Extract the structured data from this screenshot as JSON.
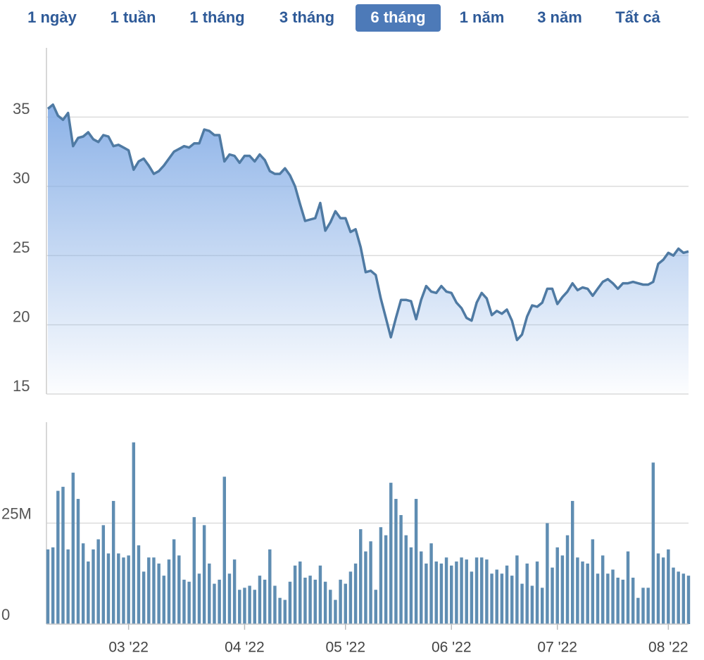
{
  "range_buttons": [
    "1 ngày",
    "1 tuần",
    "1 tháng",
    "3 tháng",
    "6 tháng",
    "1 năm",
    "3 năm",
    "Tất cả"
  ],
  "selected_index": 4,
  "chart_data": [
    {
      "type": "area",
      "x": [
        0,
        1,
        2,
        3,
        4,
        5,
        6,
        7,
        8,
        9,
        10,
        11,
        12,
        13,
        14,
        15,
        16,
        17,
        18,
        19,
        20,
        21,
        22,
        23,
        24,
        25,
        26,
        27,
        28,
        29,
        30,
        31,
        32,
        33,
        34,
        35,
        36,
        37,
        38,
        39,
        40,
        41,
        42,
        43,
        44,
        45,
        46,
        47,
        48,
        49,
        50,
        51,
        52,
        53,
        54,
        55,
        56,
        57,
        58,
        59,
        60,
        61,
        62,
        63,
        64,
        65,
        66,
        67,
        68,
        69,
        70,
        71,
        72,
        73,
        74,
        75,
        76,
        77,
        78,
        79,
        80,
        81,
        82,
        83,
        84,
        85,
        86,
        87,
        88,
        89,
        90,
        91,
        92,
        93,
        94,
        95,
        96,
        97,
        98,
        99,
        100,
        101,
        102,
        103,
        104,
        105,
        106,
        107,
        108,
        109,
        110,
        111,
        112,
        113,
        114,
        115,
        116,
        117,
        118,
        119,
        120,
        121,
        122,
        123,
        124,
        125,
        126,
        127
      ],
      "values": [
        35.6,
        35.9,
        35.1,
        34.8,
        35.3,
        32.9,
        33.5,
        33.6,
        33.9,
        33.4,
        33.2,
        33.7,
        33.6,
        32.9,
        33.0,
        32.8,
        32.6,
        31.2,
        31.8,
        32.0,
        31.5,
        30.9,
        31.1,
        31.5,
        32.0,
        32.5,
        32.7,
        32.9,
        32.8,
        33.1,
        33.1,
        34.1,
        34.0,
        33.7,
        33.7,
        31.8,
        32.3,
        32.2,
        31.7,
        32.2,
        32.2,
        31.8,
        32.3,
        31.9,
        31.1,
        30.9,
        30.9,
        31.3,
        30.8,
        30.0,
        28.7,
        27.5,
        27.6,
        27.7,
        28.8,
        26.8,
        27.4,
        28.2,
        27.7,
        27.7,
        26.7,
        26.9,
        25.6,
        23.8,
        23.9,
        23.6,
        21.9,
        20.5,
        19.1,
        20.5,
        21.8,
        21.8,
        21.7,
        20.4,
        21.8,
        22.8,
        22.4,
        22.3,
        22.8,
        22.4,
        22.3,
        21.6,
        21.2,
        20.5,
        20.3,
        21.6,
        22.3,
        21.9,
        20.7,
        21.0,
        20.8,
        21.1,
        20.3,
        18.9,
        19.3,
        20.6,
        21.4,
        21.3,
        21.6,
        22.6,
        22.6,
        21.5,
        22.0,
        22.4,
        23.0,
        22.5,
        22.7,
        22.6,
        22.1,
        22.6,
        23.1,
        23.3,
        23.0,
        22.6,
        23.0,
        23.0,
        23.1,
        23.0,
        22.9,
        22.9,
        23.1,
        24.4,
        24.7,
        25.2,
        25.0,
        25.5,
        25.2,
        25.3
      ],
      "color": "#4f7aa3",
      "xlim": [
        0,
        127
      ],
      "ylim": [
        15,
        40
      ],
      "yticks": [
        15,
        20,
        25,
        30,
        35
      ],
      "grid": true
    },
    {
      "type": "bar",
      "x": [
        0,
        1,
        2,
        3,
        4,
        5,
        6,
        7,
        8,
        9,
        10,
        11,
        12,
        13,
        14,
        15,
        16,
        17,
        18,
        19,
        20,
        21,
        22,
        23,
        24,
        25,
        26,
        27,
        28,
        29,
        30,
        31,
        32,
        33,
        34,
        35,
        36,
        37,
        38,
        39,
        40,
        41,
        42,
        43,
        44,
        45,
        46,
        47,
        48,
        49,
        50,
        51,
        52,
        53,
        54,
        55,
        56,
        57,
        58,
        59,
        60,
        61,
        62,
        63,
        64,
        65,
        66,
        67,
        68,
        69,
        70,
        71,
        72,
        73,
        74,
        75,
        76,
        77,
        78,
        79,
        80,
        81,
        82,
        83,
        84,
        85,
        86,
        87,
        88,
        89,
        90,
        91,
        92,
        93,
        94,
        95,
        96,
        97,
        98,
        99,
        100,
        101,
        102,
        103,
        104,
        105,
        106,
        107,
        108,
        109,
        110,
        111,
        112,
        113,
        114,
        115,
        116,
        117,
        118,
        119,
        120,
        121,
        122,
        123,
        124,
        125,
        126,
        127
      ],
      "values": [
        18500000,
        19000000,
        33000000,
        34000000,
        18500000,
        37500000,
        31000000,
        20000000,
        15500000,
        18500000,
        21000000,
        24500000,
        17500000,
        30500000,
        17500000,
        16500000,
        17000000,
        45000000,
        19500000,
        13000000,
        16500000,
        16500000,
        15000000,
        12000000,
        16000000,
        21000000,
        17000000,
        11000000,
        10500000,
        26500000,
        12500000,
        24500000,
        15000000,
        10000000,
        11000000,
        36500000,
        12500000,
        16000000,
        8500000,
        9000000,
        9500000,
        8500000,
        12000000,
        11000000,
        18500000,
        9500000,
        6500000,
        6000000,
        10500000,
        14500000,
        15500000,
        11500000,
        12000000,
        11000000,
        14500000,
        10500000,
        8500000,
        6000000,
        11000000,
        10000000,
        13000000,
        15000000,
        23500000,
        18000000,
        20500000,
        8500000,
        24000000,
        22000000,
        35000000,
        31000000,
        27000000,
        22000000,
        19000000,
        31000000,
        18000000,
        15000000,
        20000000,
        15500000,
        15000000,
        16500000,
        14500000,
        15500000,
        16500000,
        16000000,
        13000000,
        16500000,
        16500000,
        16000000,
        12500000,
        13500000,
        12500000,
        14500000,
        12000000,
        17000000,
        10000000,
        15000000,
        9500000,
        15500000,
        9000000,
        25000000,
        14000000,
        19000000,
        17000000,
        22000000,
        30500000,
        16500000,
        15500000,
        15000000,
        21000000,
        12500000,
        17000000,
        12500000,
        13500000,
        11500000,
        11000000,
        18000000,
        11500000,
        6500000,
        9000000,
        9000000,
        40000000,
        17500000,
        16500000,
        18500000,
        14000000,
        13000000,
        12500000,
        12000000
      ],
      "color": "#5f8db2",
      "xlim": [
        0,
        127
      ],
      "xticks": [
        {
          "value": 16,
          "label": "03 '22"
        },
        {
          "value": 39,
          "label": "04 '22"
        },
        {
          "value": 59,
          "label": "05 '22"
        },
        {
          "value": 80,
          "label": "06 '22"
        },
        {
          "value": 101,
          "label": "07 '22"
        },
        {
          "value": 123,
          "label": "08 '22"
        }
      ],
      "ylim": [
        0,
        50000000
      ],
      "yticks": [
        0,
        {
          "value": 25000000,
          "label": "25M"
        }
      ],
      "grid": true
    }
  ]
}
